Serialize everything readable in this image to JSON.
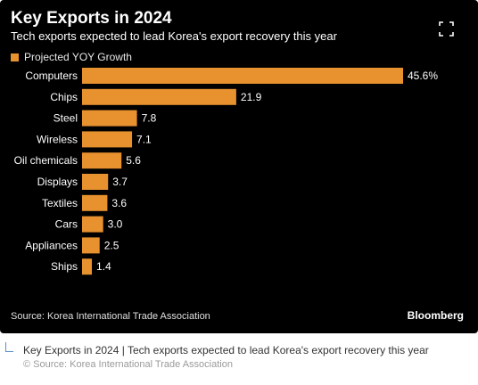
{
  "chart_data": {
    "type": "bar",
    "orientation": "horizontal",
    "title": "Key Exports in 2024",
    "subtitle": "Tech exports expected to lead Korea's export recovery this year",
    "legend": {
      "label": "Projected YOY Growth",
      "placement": "top-left"
    },
    "categories": [
      "Computers",
      "Chips",
      "Steel",
      "Wireless",
      "Oil chemicals",
      "Displays",
      "Textiles",
      "Cars",
      "Appliances",
      "Ships"
    ],
    "series": [
      {
        "name": "Projected YOY Growth",
        "values": [
          45.6,
          21.9,
          7.8,
          7.1,
          5.6,
          3.7,
          3.6,
          3.0,
          2.5,
          1.4
        ],
        "labels": [
          "45.6%",
          "21.9",
          "7.8",
          "7.1",
          "5.6",
          "3.7",
          "3.6",
          "3.0",
          "2.5",
          "1.4"
        ]
      }
    ],
    "xlim": [
      0,
      45.6
    ],
    "grid": false,
    "bar_color": "#e8912f"
  },
  "source": "Source: Korea International Trade Association",
  "brand": "Bloomberg",
  "expand_icon": "expand-icon",
  "caption": {
    "text": "Key Exports in 2024 | Tech exports expected to lead Korea's export recovery this year",
    "source": "© Source: Korea International Trade Association"
  },
  "colors": {
    "background": "#000000",
    "bar": "#e8912f",
    "text": "#ffffff"
  }
}
